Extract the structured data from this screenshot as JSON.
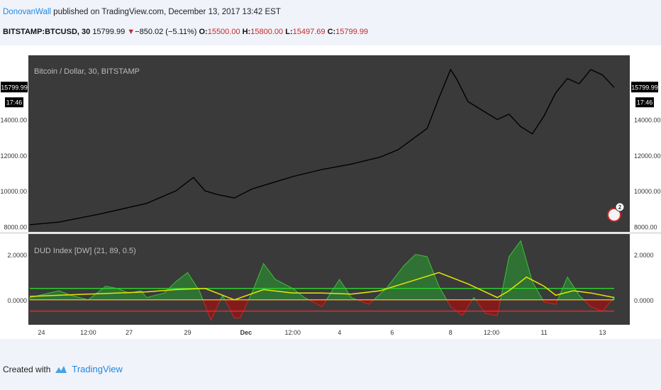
{
  "header": {
    "author": "DonovanWall",
    "published_text": "published on TradingView.com, December 13, 2017 13:42 EST",
    "symbol": "BITSTAMP:BTCUSD, 30",
    "last": "15799.99",
    "change": "−850.02 (−5.11%)",
    "o_label": "O:",
    "o": "15500.00",
    "h_label": "H:",
    "h": "15800.00",
    "l_label": "L:",
    "l": "15497.69",
    "c_label": "C:",
    "c": "15799.99"
  },
  "footer": {
    "created_with": "Created with",
    "brand": "TradingView"
  },
  "colors": {
    "panel_bg": "#3a3a3a",
    "price_line": "#000000",
    "upper_band": "#2ecc2e",
    "lower_band": "#d32f2f",
    "zero_line": "#e8a33d",
    "signal": "#e6e600",
    "pos_fill": "#2e7d32",
    "neg_fill": "#8b1a1a"
  },
  "chart_data": [
    {
      "type": "line",
      "title": "Bitcoin / Dollar, 30, BITSTAMP",
      "xlabel": "",
      "ylabel": "",
      "ylim": [
        7700,
        17600
      ],
      "y_ticks": [
        8000,
        10000,
        12000,
        14000
      ],
      "y_tick_labels": [
        "8000.00",
        "10000.00",
        "12000.00",
        "14000.00"
      ],
      "last_price_label": "15799.99",
      "time_label": "17:46",
      "x_labels": [
        "24",
        "12:00",
        "27",
        "29",
        "Dec",
        "12:00",
        "4",
        "6",
        "8",
        "12:00",
        "11",
        "13"
      ],
      "x": [
        0,
        0.05,
        0.12,
        0.2,
        0.25,
        0.28,
        0.3,
        0.32,
        0.35,
        0.38,
        0.4,
        0.45,
        0.5,
        0.55,
        0.6,
        0.63,
        0.68,
        0.7,
        0.72,
        0.73,
        0.75,
        0.78,
        0.8,
        0.82,
        0.84,
        0.86,
        0.88,
        0.9,
        0.92,
        0.94,
        0.96,
        0.98,
        1.0
      ],
      "values": [
        8100,
        8250,
        8700,
        9300,
        10000,
        10750,
        10000,
        9800,
        9600,
        10100,
        10300,
        10800,
        11200,
        11500,
        11900,
        12300,
        13500,
        15200,
        16800,
        16300,
        15000,
        14400,
        14000,
        14300,
        13600,
        13200,
        14200,
        15500,
        16300,
        16000,
        16800,
        16500,
        15800
      ]
    },
    {
      "type": "area",
      "title": "DUD Index [DW] (21, 89, 0.5)",
      "xlabel": "",
      "ylabel": "",
      "ylim": [
        -1.1,
        2.9
      ],
      "y_ticks": [
        0,
        2
      ],
      "y_tick_labels": [
        "0.0000",
        "2.0000"
      ],
      "reference_lines": {
        "upper": 0.5,
        "zero": 0,
        "lower": -0.5
      },
      "series": [
        {
          "x": [
            0,
            0.05,
            0.07,
            0.1,
            0.13,
            0.15,
            0.17,
            0.19,
            0.2,
            0.23,
            0.25,
            0.27,
            0.29,
            0.31,
            0.33,
            0.35,
            0.36,
            0.38,
            0.4,
            0.42,
            0.45,
            0.47,
            0.5,
            0.53,
            0.55,
            0.58,
            0.61,
            0.64,
            0.66,
            0.68,
            0.7,
            0.72,
            0.74,
            0.76,
            0.78,
            0.8,
            0.82,
            0.84,
            0.86,
            0.88,
            0.9,
            0.92,
            0.94,
            0.96,
            0.98,
            1.0
          ],
          "values": [
            0.1,
            0.4,
            0.2,
            0.0,
            0.6,
            0.5,
            0.3,
            0.4,
            0.1,
            0.3,
            0.8,
            1.2,
            0.4,
            -0.9,
            0.2,
            -0.8,
            -0.8,
            0.3,
            1.6,
            0.9,
            0.5,
            0.1,
            -0.3,
            0.9,
            0.1,
            -0.2,
            0.5,
            1.5,
            2.0,
            1.9,
            0.6,
            -0.3,
            -0.7,
            0.1,
            -0.6,
            -0.7,
            1.9,
            2.6,
            0.8,
            -0.1,
            -0.2,
            1.0,
            0.2,
            -0.3,
            -0.5,
            0.1
          ]
        },
        {
          "x": [
            0,
            0.1,
            0.2,
            0.25,
            0.3,
            0.35,
            0.4,
            0.45,
            0.5,
            0.55,
            0.6,
            0.65,
            0.7,
            0.75,
            0.8,
            0.82,
            0.85,
            0.88,
            0.9,
            0.93,
            0.96,
            1.0
          ],
          "values": [
            0.15,
            0.25,
            0.35,
            0.45,
            0.5,
            0.0,
            0.45,
            0.3,
            0.3,
            0.25,
            0.4,
            0.8,
            1.2,
            0.7,
            0.1,
            0.4,
            1.0,
            0.6,
            0.2,
            0.4,
            0.3,
            0.1
          ]
        }
      ]
    }
  ]
}
